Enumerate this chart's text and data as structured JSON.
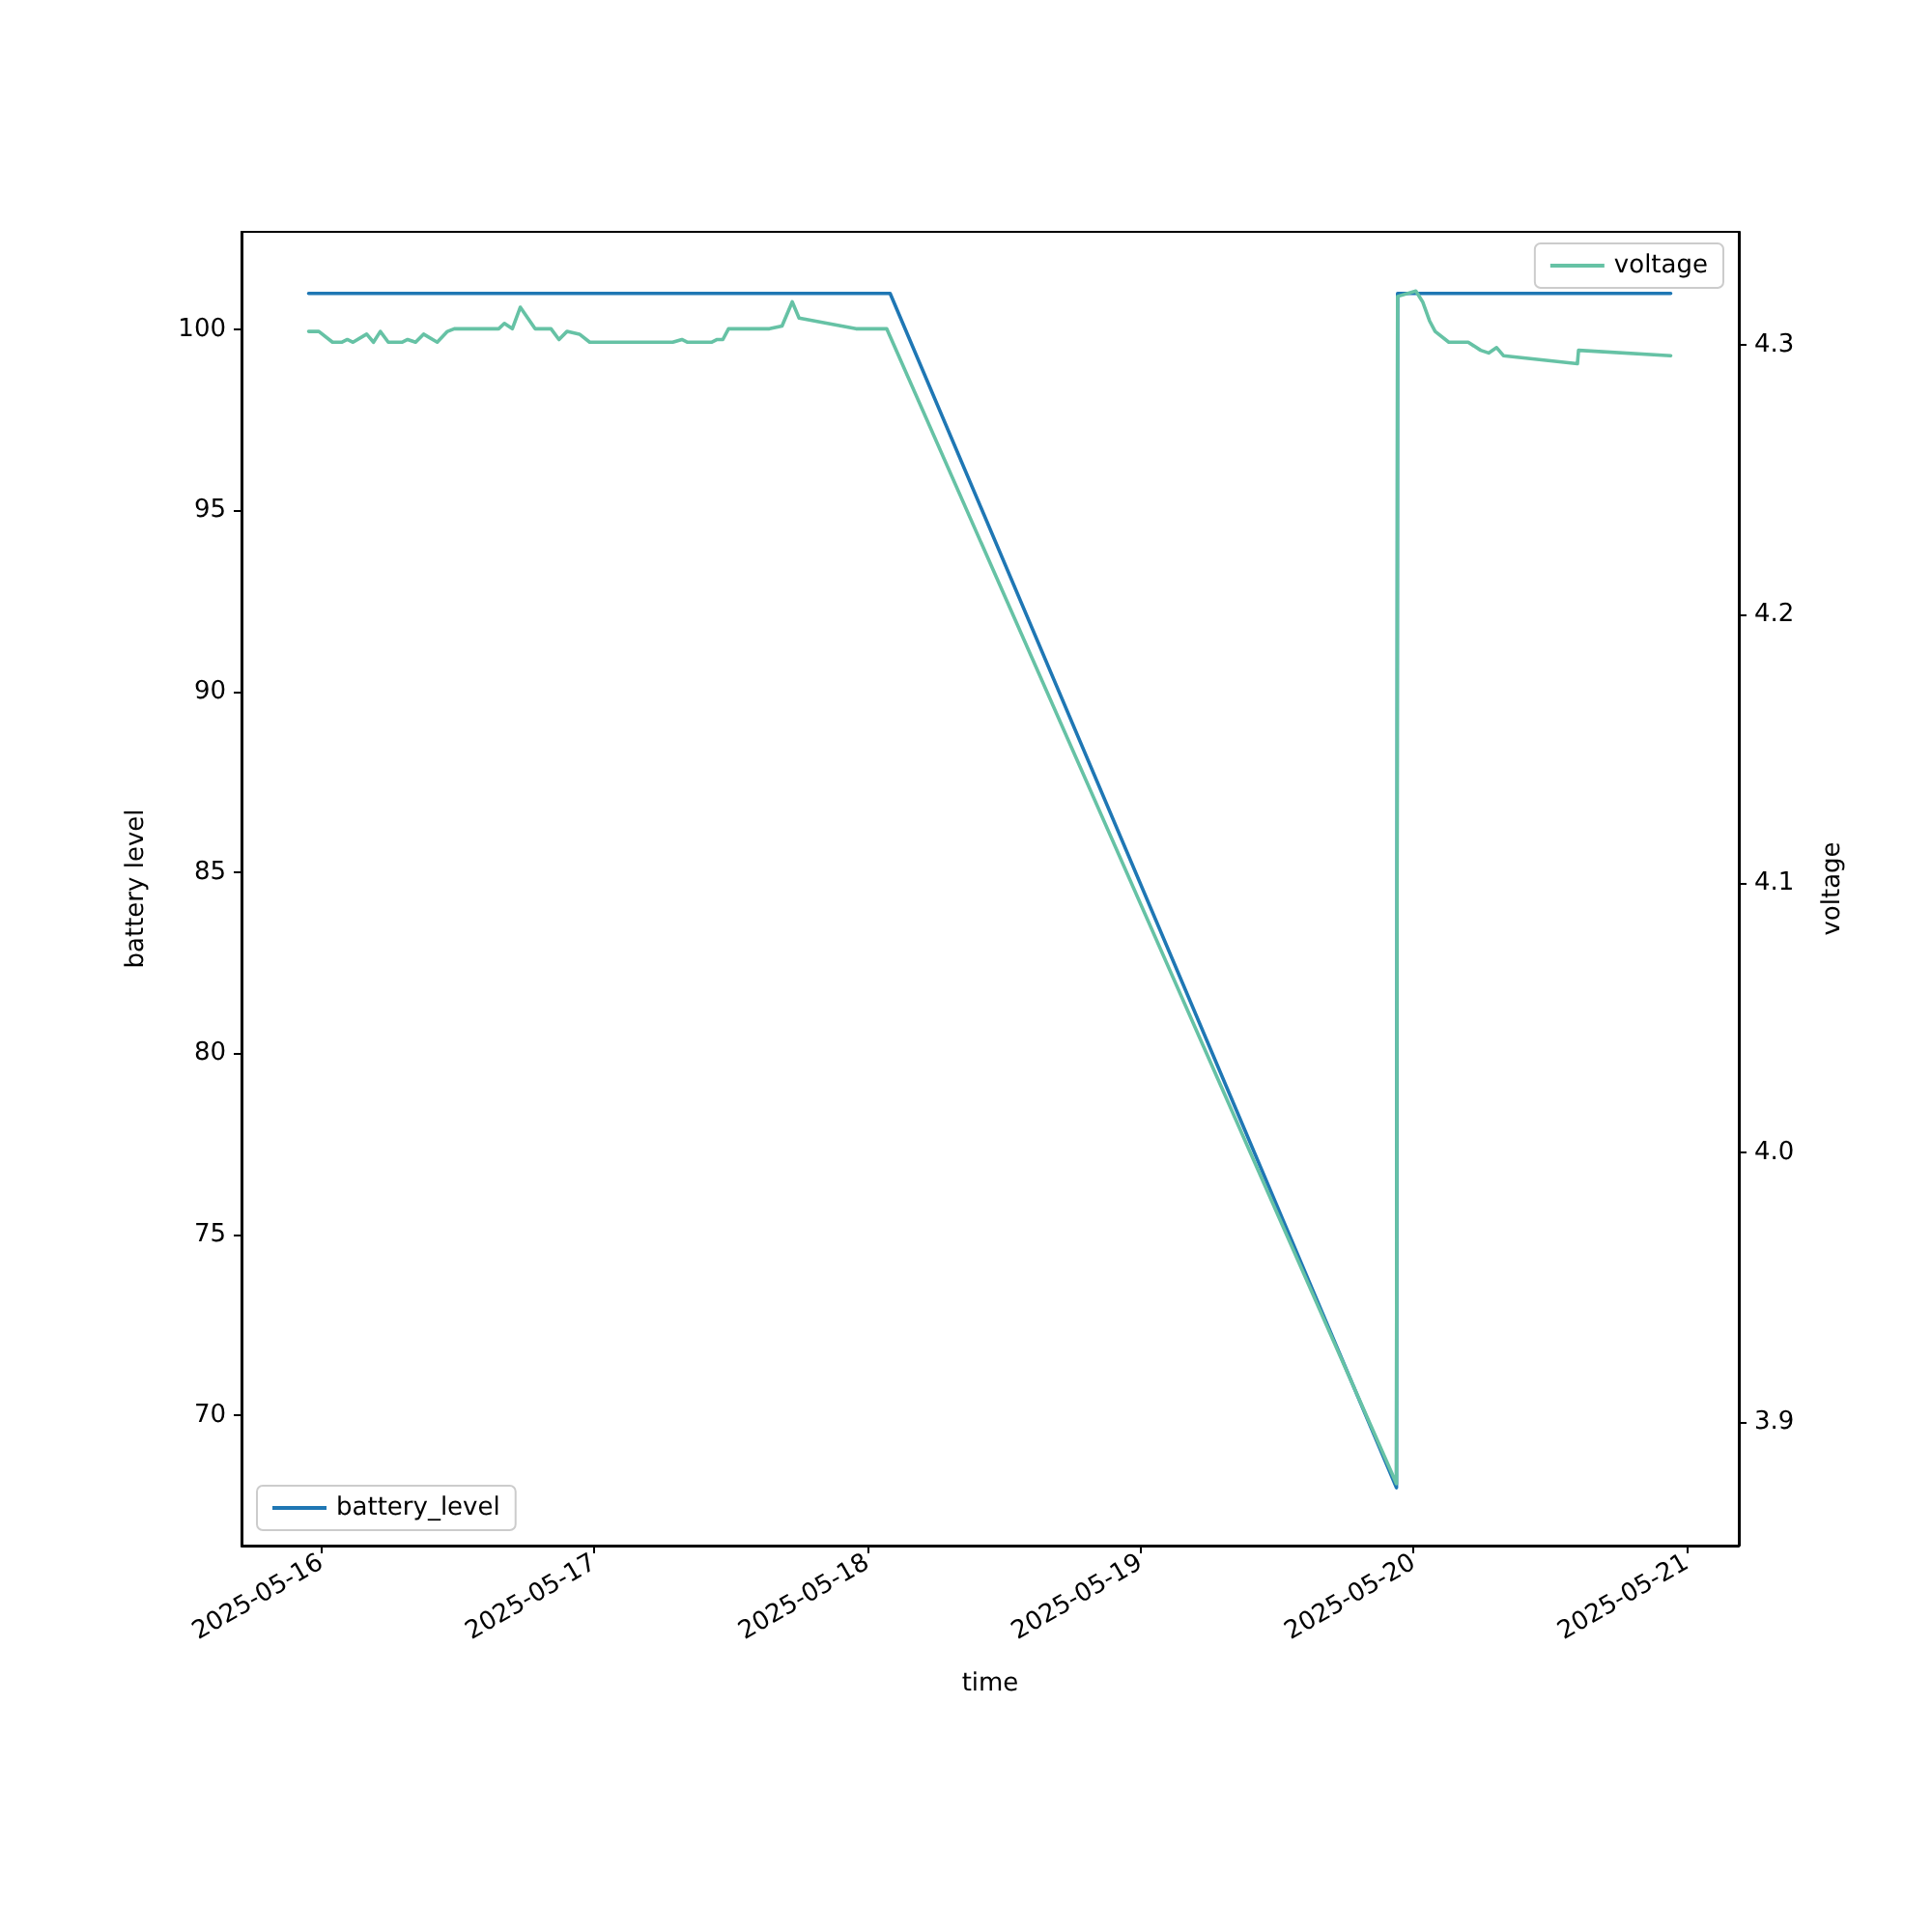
{
  "chart_data": {
    "type": "line",
    "xlabel": "time",
    "ylabel": "battery level",
    "y2label": "voltage",
    "xlim": [
      "2025-05-15T17:00",
      "2025-05-21T04:35"
    ],
    "xticks": [
      "2025-05-16",
      "2025-05-17",
      "2025-05-18",
      "2025-05-19",
      "2025-05-20",
      "2025-05-21"
    ],
    "ylim": [
      66.4,
      102.7
    ],
    "yticks": [
      70,
      75,
      80,
      85,
      90,
      95,
      100
    ],
    "y2lim": [
      3.854,
      4.342
    ],
    "y2ticks": [
      3.9,
      {
        "value": 4.0,
        "label": "4.0"
      },
      4.1,
      4.2,
      4.3
    ],
    "grid": false,
    "legend": [
      "bottom left",
      "top right"
    ],
    "marker": "none",
    "line_style": "solid",
    "series": [
      {
        "name": "battery_level",
        "color": "#1f77b4",
        "x": [
          "2025-05-15T22:54",
          "2025-05-18T02:00",
          "2025-05-19T22:30",
          "2025-05-19T22:36",
          "2025-05-20T22:36"
        ],
        "values": [
          101,
          101,
          68,
          101,
          101
        ]
      },
      {
        "name": "voltage",
        "color": "#66c2a5",
        "axis": "y2",
        "x": [
          "2025-05-15T22:54",
          "2025-05-15T23:48",
          "2025-05-16T01:00",
          "2025-05-16T01:48",
          "2025-05-16T02:18",
          "2025-05-16T02:48",
          "2025-05-16T04:00",
          "2025-05-16T04:36",
          "2025-05-16T05:12",
          "2025-05-16T05:54",
          "2025-05-16T07:06",
          "2025-05-16T07:36",
          "2025-05-16T08:18",
          "2025-05-16T09:00",
          "2025-05-16T10:12",
          "2025-05-16T11:06",
          "2025-05-16T11:42",
          "2025-05-16T15:36",
          "2025-05-16T16:06",
          "2025-05-16T16:48",
          "2025-05-16T17:30",
          "2025-05-16T18:48",
          "2025-05-16T20:12",
          "2025-05-16T20:54",
          "2025-05-16T21:36",
          "2025-05-16T22:42",
          "2025-05-16T23:36",
          "2025-05-17T06:54",
          "2025-05-17T07:42",
          "2025-05-17T08:12",
          "2025-05-17T10:18",
          "2025-05-17T10:48",
          "2025-05-17T11:18",
          "2025-05-17T11:48",
          "2025-05-17T15:24",
          "2025-05-17T16:30",
          "2025-05-17T17:24",
          "2025-05-17T18:00",
          "2025-05-17T23:00",
          "2025-05-18T01:42",
          "2025-05-19T22:30",
          "2025-05-19T22:36",
          "2025-05-20T00:12",
          "2025-05-20T00:48",
          "2025-05-20T01:24",
          "2025-05-20T01:54",
          "2025-05-20T03:06",
          "2025-05-20T04:48",
          "2025-05-20T05:54",
          "2025-05-20T06:36",
          "2025-05-20T07:18",
          "2025-05-20T07:54",
          "2025-05-20T14:24",
          "2025-05-20T14:30",
          "2025-05-20T22:36"
        ],
        "values": [
          4.305,
          4.305,
          4.301,
          4.301,
          4.302,
          4.301,
          4.304,
          4.301,
          4.305,
          4.301,
          4.301,
          4.302,
          4.301,
          4.304,
          4.301,
          4.305,
          4.306,
          4.306,
          4.308,
          4.306,
          4.314,
          4.306,
          4.306,
          4.302,
          4.305,
          4.304,
          4.301,
          4.301,
          4.302,
          4.301,
          4.301,
          4.302,
          4.302,
          4.306,
          4.306,
          4.307,
          4.316,
          4.31,
          4.306,
          4.306,
          3.877,
          4.318,
          4.32,
          4.316,
          4.309,
          4.305,
          4.301,
          4.301,
          4.298,
          4.297,
          4.299,
          4.296,
          4.293,
          4.298,
          4.296
        ]
      }
    ]
  }
}
